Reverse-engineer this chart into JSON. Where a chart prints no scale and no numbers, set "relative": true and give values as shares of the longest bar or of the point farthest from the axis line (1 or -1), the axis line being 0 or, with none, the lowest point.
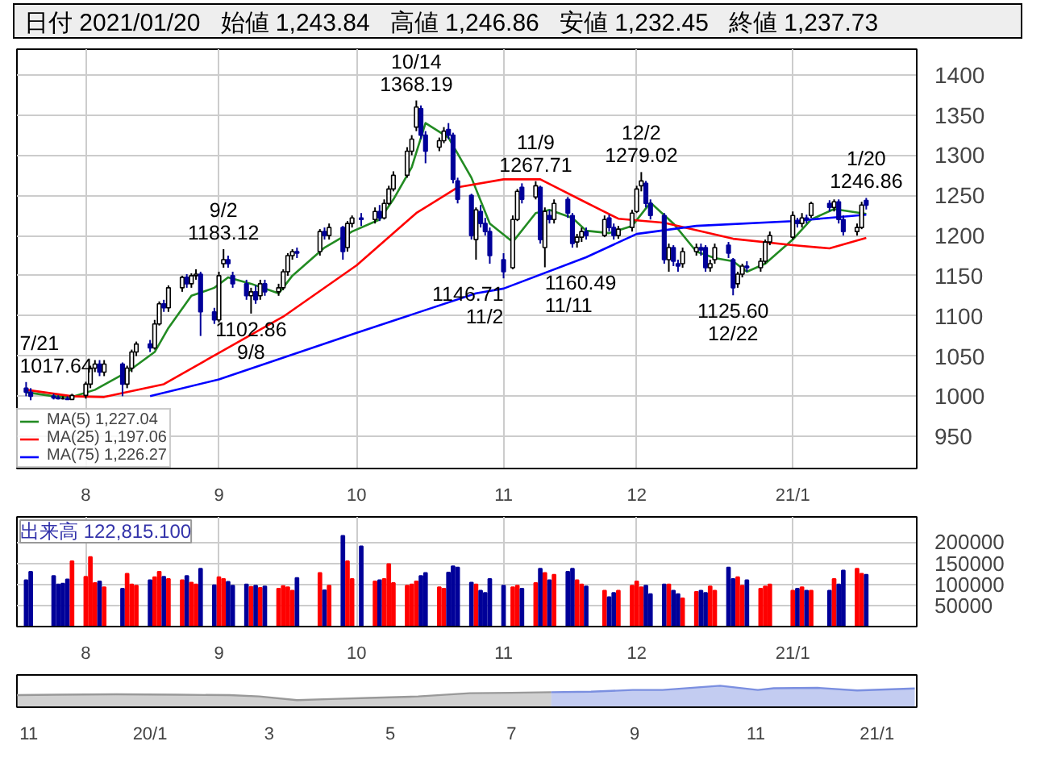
{
  "chart_data": [
    {
      "type": "candlestick",
      "annotations": [
        "日付 2021/01/20",
        "始値 1,243.84",
        "高値 1,246.86",
        "安値 1,232.45",
        "終値 1,237.73",
        {
          "text": "7/21\n1017.64",
          "x": "2020-07-21",
          "y": 1017.64
        },
        {
          "text": "9/2\n1183.12",
          "x": "2020-09-02",
          "y": 1183.12
        },
        {
          "text": "1102.86\n9/8",
          "x": "2020-09-08",
          "y": 1102.86
        },
        {
          "text": "10/14\n1368.19",
          "x": "2020-10-14",
          "y": 1368.19
        },
        {
          "text": "1146.71\n11/2",
          "x": "2020-11-02",
          "y": 1146.71
        },
        {
          "text": "11/9\n1267.71",
          "x": "2020-11-09",
          "y": 1267.71
        },
        {
          "text": "1160.49\n11/11",
          "x": "2020-11-11",
          "y": 1160.49
        },
        {
          "text": "12/2\n1279.02",
          "x": "2020-12-02",
          "y": 1279.02
        },
        {
          "text": "1125.60\n12/22",
          "x": "2020-12-22",
          "y": 1125.6
        },
        {
          "text": "1/20\n1246.86",
          "x": "2021-01-20",
          "y": 1246.86
        }
      ],
      "x": [
        "2020-07-21",
        "2020-07-22",
        "2020-07-27",
        "2020-07-28",
        "2020-07-29",
        "2020-07-30",
        "2020-07-31",
        "2020-08-03",
        "2020-08-04",
        "2020-08-05",
        "2020-08-06",
        "2020-08-07",
        "2020-08-11",
        "2020-08-12",
        "2020-08-13",
        "2020-08-14",
        "2020-08-17",
        "2020-08-18",
        "2020-08-19",
        "2020-08-20",
        "2020-08-21",
        "2020-08-24",
        "2020-08-25",
        "2020-08-26",
        "2020-08-27",
        "2020-08-28",
        "2020-08-31",
        "2020-09-01",
        "2020-09-02",
        "2020-09-03",
        "2020-09-04",
        "2020-09-07",
        "2020-09-08",
        "2020-09-09",
        "2020-09-10",
        "2020-09-11",
        "2020-09-14",
        "2020-09-15",
        "2020-09-16",
        "2020-09-17",
        "2020-09-18",
        "2020-09-23",
        "2020-09-24",
        "2020-09-25",
        "2020-09-28",
        "2020-09-29",
        "2020-09-30",
        "2020-10-02",
        "2020-10-05",
        "2020-10-06",
        "2020-10-07",
        "2020-10-08",
        "2020-10-09",
        "2020-10-12",
        "2020-10-13",
        "2020-10-14",
        "2020-10-15",
        "2020-10-16",
        "2020-10-19",
        "2020-10-20",
        "2020-10-21",
        "2020-10-22",
        "2020-10-23",
        "2020-10-26",
        "2020-10-27",
        "2020-10-28",
        "2020-10-29",
        "2020-10-30",
        "2020-11-02",
        "2020-11-04",
        "2020-11-05",
        "2020-11-06",
        "2020-11-09",
        "2020-11-10",
        "2020-11-11",
        "2020-11-12",
        "2020-11-13",
        "2020-11-16",
        "2020-11-17",
        "2020-11-18",
        "2020-11-19",
        "2020-11-20",
        "2020-11-24",
        "2020-11-25",
        "2020-11-26",
        "2020-11-27",
        "2020-11-30",
        "2020-12-01",
        "2020-12-02",
        "2020-12-03",
        "2020-12-04",
        "2020-12-07",
        "2020-12-08",
        "2020-12-09",
        "2020-12-10",
        "2020-12-11",
        "2020-12-14",
        "2020-12-15",
        "2020-12-16",
        "2020-12-17",
        "2020-12-18",
        "2020-12-21",
        "2020-12-22",
        "2020-12-23",
        "2020-12-24",
        "2020-12-25",
        "2020-12-28",
        "2020-12-29",
        "2020-12-30",
        "2021-01-04",
        "2021-01-05",
        "2021-01-06",
        "2021-01-07",
        "2021-01-08",
        "2021-01-12",
        "2021-01-13",
        "2021-01-14",
        "2021-01-15",
        "2021-01-18",
        "2021-01-19",
        "2021-01-20"
      ],
      "ohlc": [
        [
          1010,
          1017.64,
          1000,
          1005
        ],
        [
          1005,
          1010,
          995,
          1000
        ],
        [
          1000,
          1003,
          996,
          998
        ],
        [
          998,
          1001,
          996,
          997
        ],
        [
          997,
          1000,
          996,
          997
        ],
        [
          997,
          1000,
          996,
          996
        ],
        [
          996,
          1003,
          996,
          1001
        ],
        [
          1001,
          1018,
          997,
          1015
        ],
        [
          1015,
          1038,
          1010,
          1035
        ],
        [
          1035,
          1045,
          1030,
          1040
        ],
        [
          1040,
          1045,
          1025,
          1030
        ],
        [
          1030,
          1045,
          1025,
          1040
        ],
        [
          1040,
          1042,
          1000,
          1015
        ],
        [
          1015,
          1038,
          1010,
          1035
        ],
        [
          1035,
          1058,
          1030,
          1055
        ],
        [
          1055,
          1068,
          1050,
          1065
        ],
        [
          1065,
          1070,
          1055,
          1060
        ],
        [
          1060,
          1095,
          1058,
          1090
        ],
        [
          1090,
          1118,
          1088,
          1115
        ],
        [
          1115,
          1120,
          1105,
          1110
        ],
        [
          1110,
          1138,
          1105,
          1135
        ],
        [
          1135,
          1150,
          1130,
          1148
        ],
        [
          1148,
          1152,
          1135,
          1140
        ],
        [
          1140,
          1153,
          1135,
          1150
        ],
        [
          1150,
          1158,
          1145,
          1152
        ],
        [
          1152,
          1155,
          1075,
          1105
        ],
        [
          1105,
          1110,
          1090,
          1095
        ],
        [
          1095,
          1155,
          1092,
          1150
        ],
        [
          1165,
          1183.12,
          1160,
          1170
        ],
        [
          1170,
          1175,
          1160,
          1165
        ],
        [
          1150,
          1155,
          1135,
          1140
        ],
        [
          1140,
          1145,
          1120,
          1125
        ],
        [
          1125,
          1135,
          1102.86,
          1130
        ],
        [
          1130,
          1138,
          1115,
          1120
        ],
        [
          1125,
          1145,
          1120,
          1140
        ],
        [
          1140,
          1145,
          1125,
          1130
        ],
        [
          1130,
          1140,
          1125,
          1135
        ],
        [
          1135,
          1158,
          1132,
          1155
        ],
        [
          1155,
          1178,
          1150,
          1175
        ],
        [
          1175,
          1183,
          1170,
          1180
        ],
        [
          1180,
          1185,
          1172,
          1178
        ],
        [
          1180,
          1208,
          1175,
          1205
        ],
        [
          1205,
          1210,
          1195,
          1200
        ],
        [
          1200,
          1215,
          1195,
          1210
        ],
        [
          1210,
          1212,
          1170,
          1180
        ],
        [
          1185,
          1218,
          1180,
          1215
        ],
        [
          1215,
          1225,
          1210,
          1222
        ],
        [
          1222,
          1228,
          1212,
          1220
        ],
        [
          1220,
          1235,
          1215,
          1230
        ],
        [
          1230,
          1238,
          1218,
          1222
        ],
        [
          1222,
          1245,
          1220,
          1240
        ],
        [
          1240,
          1262,
          1238,
          1258
        ],
        [
          1258,
          1280,
          1255,
          1275
        ],
        [
          1275,
          1310,
          1272,
          1305
        ],
        [
          1305,
          1325,
          1300,
          1320
        ],
        [
          1335,
          1368.19,
          1330,
          1360
        ],
        [
          1358,
          1362,
          1320,
          1325
        ],
        [
          1325,
          1330,
          1290,
          1305
        ],
        [
          1310,
          1322,
          1305,
          1318
        ],
        [
          1318,
          1335,
          1315,
          1330
        ],
        [
          1332,
          1340,
          1320,
          1325
        ],
        [
          1325,
          1328,
          1265,
          1270
        ],
        [
          1268,
          1272,
          1240,
          1245
        ],
        [
          1250,
          1252,
          1195,
          1200
        ],
        [
          1195,
          1235,
          1170,
          1232
        ],
        [
          1230,
          1238,
          1210,
          1215
        ],
        [
          1215,
          1222,
          1200,
          1205
        ],
        [
          1205,
          1210,
          1165,
          1175
        ],
        [
          1170,
          1178,
          1146.71,
          1155
        ],
        [
          1160,
          1225,
          1158,
          1220
        ],
        [
          1220,
          1258,
          1218,
          1255
        ],
        [
          1260,
          1265,
          1240,
          1245
        ],
        [
          1248,
          1267.71,
          1245,
          1262
        ],
        [
          1260,
          1262,
          1190,
          1195
        ],
        [
          1185,
          1235,
          1160.49,
          1230
        ],
        [
          1225,
          1232,
          1215,
          1220
        ],
        [
          1220,
          1245,
          1215,
          1240
        ],
        [
          1245,
          1248,
          1222,
          1228
        ],
        [
          1225,
          1228,
          1185,
          1190
        ],
        [
          1192,
          1202,
          1185,
          1198
        ],
        [
          1198,
          1210,
          1192,
          1205
        ],
        [
          1205,
          1210,
          1195,
          1200
        ],
        [
          1200,
          1225,
          1198,
          1220
        ],
        [
          1222,
          1226,
          1205,
          1210
        ],
        [
          1210,
          1215,
          1195,
          1200
        ],
        [
          1200,
          1212,
          1196,
          1208
        ],
        [
          1210,
          1232,
          1205,
          1228
        ],
        [
          1230,
          1262,
          1228,
          1258
        ],
        [
          1262,
          1279.02,
          1255,
          1268
        ],
        [
          1265,
          1268,
          1235,
          1240
        ],
        [
          1240,
          1245,
          1220,
          1225
        ],
        [
          1225,
          1228,
          1165,
          1170
        ],
        [
          1170,
          1190,
          1155,
          1185
        ],
        [
          1185,
          1188,
          1162,
          1168
        ],
        [
          1165,
          1170,
          1155,
          1162
        ],
        [
          1165,
          1185,
          1160,
          1180
        ],
        [
          1180,
          1190,
          1175,
          1185
        ],
        [
          1185,
          1190,
          1175,
          1182
        ],
        [
          1185,
          1188,
          1155,
          1160
        ],
        [
          1160,
          1170,
          1155,
          1165
        ],
        [
          1170,
          1190,
          1165,
          1185
        ],
        [
          1188,
          1192,
          1172,
          1178
        ],
        [
          1170,
          1172,
          1125.6,
          1135
        ],
        [
          1140,
          1155,
          1135,
          1152
        ],
        [
          1152,
          1165,
          1148,
          1162
        ],
        [
          1162,
          1168,
          1155,
          1160
        ],
        [
          1160,
          1172,
          1155,
          1168
        ],
        [
          1168,
          1195,
          1165,
          1192
        ],
        [
          1192,
          1205,
          1188,
          1200
        ],
        [
          1198,
          1230,
          1195,
          1225
        ],
        [
          1218,
          1222,
          1210,
          1215
        ],
        [
          1215,
          1228,
          1210,
          1222
        ],
        [
          1222,
          1226,
          1215,
          1220
        ],
        [
          1225,
          1242,
          1222,
          1240
        ],
        [
          1240,
          1244,
          1230,
          1235
        ],
        [
          1235,
          1245,
          1230,
          1242
        ],
        [
          1242,
          1245,
          1215,
          1220
        ],
        [
          1220,
          1225,
          1200,
          1205
        ],
        [
          1205,
          1215,
          1200,
          1210
        ],
        [
          1210,
          1242,
          1208,
          1238
        ],
        [
          1243.84,
          1246.86,
          1232.45,
          1237.73
        ]
      ],
      "series": [
        {
          "name": "MA(5) 1,227.04",
          "type": "line",
          "color": "#228b22",
          "x": [
            "2020-07-21",
            "2020-07-27",
            "2020-07-31",
            "2020-08-05",
            "2020-08-12",
            "2020-08-18",
            "2020-08-21",
            "2020-08-26",
            "2020-08-31",
            "2020-09-03",
            "2020-09-08",
            "2020-09-14",
            "2020-09-17",
            "2020-09-24",
            "2020-09-30",
            "2020-10-06",
            "2020-10-09",
            "2020-10-13",
            "2020-10-16",
            "2020-10-21",
            "2020-10-26",
            "2020-10-30",
            "2020-11-04",
            "2020-11-09",
            "2020-11-12",
            "2020-11-17",
            "2020-11-20",
            "2020-11-25",
            "2020-11-30",
            "2020-12-04",
            "2020-12-09",
            "2020-12-14",
            "2020-12-18",
            "2020-12-22",
            "2020-12-25",
            "2020-12-29",
            "2021-01-04",
            "2021-01-08",
            "2021-01-13",
            "2021-01-20"
          ],
          "values": [
            1005,
            1000,
            999,
            1008,
            1030,
            1055,
            1085,
            1125,
            1135,
            1148,
            1140,
            1128,
            1150,
            1185,
            1205,
            1220,
            1245,
            1285,
            1340,
            1322,
            1272,
            1215,
            1192,
            1228,
            1232,
            1222,
            1206,
            1203,
            1212,
            1241,
            1215,
            1180,
            1172,
            1168,
            1155,
            1165,
            1195,
            1220,
            1233,
            1227
          ]
        },
        {
          "name": "MA(25) 1,197.06",
          "type": "line",
          "color": "#ff0000",
          "x": [
            "2020-07-21",
            "2020-07-31",
            "2020-08-07",
            "2020-08-20",
            "2020-09-01",
            "2020-09-15",
            "2020-10-01",
            "2020-10-14",
            "2020-10-23",
            "2020-11-02",
            "2020-11-10",
            "2020-11-20",
            "2020-11-27",
            "2020-12-07",
            "2020-12-22",
            "2021-01-04",
            "2021-01-12",
            "2021-01-20"
          ],
          "values": [
            1008,
            1000,
            999,
            1015,
            1054,
            1099,
            1163,
            1228,
            1260,
            1270,
            1270,
            1241,
            1221,
            1216,
            1196,
            1188,
            1184,
            1197
          ]
        },
        {
          "name": "MA(75) 1,226.27",
          "type": "line",
          "color": "#0000ff",
          "x": [
            "2020-08-17",
            "2020-09-01",
            "2020-10-01",
            "2020-10-27",
            "2020-11-02",
            "2020-11-20",
            "2020-12-01",
            "2020-12-14",
            "2021-01-04",
            "2021-01-20"
          ],
          "values": [
            1000,
            1021,
            1079,
            1128,
            1134,
            1173,
            1202,
            1212,
            1218,
            1226
          ]
        }
      ],
      "xlim": [
        "2020-07-19",
        "2021-01-31"
      ],
      "ylim": [
        910,
        1432
      ],
      "xticks": [
        {
          "value": "2020-08-03",
          "label": "8"
        },
        {
          "value": "2020-09-01",
          "label": "9"
        },
        {
          "value": "2020-10-01",
          "label": "10"
        },
        {
          "value": "2020-11-02",
          "label": "11"
        },
        {
          "value": "2020-12-01",
          "label": "12"
        },
        {
          "value": "2021-01-04",
          "label": "21/1"
        }
      ],
      "yticks": [
        950,
        1000,
        1050,
        1100,
        1150,
        1200,
        1250,
        1300,
        1350,
        1400
      ],
      "grid": true,
      "legend": "bottom left",
      "marker": "none",
      "line_style": "solid"
    },
    {
      "type": "bar",
      "title": "出来高 122,815.100",
      "x": [
        "2020-07-21",
        "2020-07-22",
        "2020-07-27",
        "2020-07-28",
        "2020-07-29",
        "2020-07-30",
        "2020-07-31",
        "2020-08-03",
        "2020-08-04",
        "2020-08-05",
        "2020-08-06",
        "2020-08-07",
        "2020-08-11",
        "2020-08-12",
        "2020-08-13",
        "2020-08-14",
        "2020-08-17",
        "2020-08-18",
        "2020-08-19",
        "2020-08-20",
        "2020-08-21",
        "2020-08-24",
        "2020-08-25",
        "2020-08-26",
        "2020-08-27",
        "2020-08-28",
        "2020-08-31",
        "2020-09-01",
        "2020-09-02",
        "2020-09-03",
        "2020-09-04",
        "2020-09-07",
        "2020-09-08",
        "2020-09-09",
        "2020-09-10",
        "2020-09-11",
        "2020-09-14",
        "2020-09-15",
        "2020-09-16",
        "2020-09-17",
        "2020-09-18",
        "2020-09-23",
        "2020-09-24",
        "2020-09-25",
        "2020-09-28",
        "2020-09-29",
        "2020-09-30",
        "2020-10-02",
        "2020-10-05",
        "2020-10-06",
        "2020-10-07",
        "2020-10-08",
        "2020-10-09",
        "2020-10-12",
        "2020-10-13",
        "2020-10-14",
        "2020-10-15",
        "2020-10-16",
        "2020-10-19",
        "2020-10-20",
        "2020-10-21",
        "2020-10-22",
        "2020-10-23",
        "2020-10-26",
        "2020-10-27",
        "2020-10-28",
        "2020-10-29",
        "2020-10-30",
        "2020-11-02",
        "2020-11-04",
        "2020-11-05",
        "2020-11-06",
        "2020-11-09",
        "2020-11-10",
        "2020-11-11",
        "2020-11-12",
        "2020-11-13",
        "2020-11-16",
        "2020-11-17",
        "2020-11-18",
        "2020-11-19",
        "2020-11-20",
        "2020-11-24",
        "2020-11-25",
        "2020-11-26",
        "2020-11-27",
        "2020-11-30",
        "2020-12-01",
        "2020-12-02",
        "2020-12-03",
        "2020-12-04",
        "2020-12-07",
        "2020-12-08",
        "2020-12-09",
        "2020-12-10",
        "2020-12-11",
        "2020-12-14",
        "2020-12-15",
        "2020-12-16",
        "2020-12-17",
        "2020-12-18",
        "2020-12-21",
        "2020-12-22",
        "2020-12-23",
        "2020-12-24",
        "2020-12-25",
        "2020-12-28",
        "2020-12-29",
        "2020-12-30",
        "2021-01-04",
        "2021-01-05",
        "2021-01-06",
        "2021-01-07",
        "2021-01-08",
        "2021-01-12",
        "2021-01-13",
        "2021-01-14",
        "2021-01-15",
        "2021-01-18",
        "2021-01-19",
        "2021-01-20"
      ],
      "values": [
        110000,
        130000,
        120000,
        100000,
        102000,
        112000,
        155000,
        118000,
        165000,
        103000,
        107000,
        93000,
        90000,
        125000,
        100000,
        97000,
        110000,
        117000,
        130000,
        118000,
        113000,
        110000,
        120000,
        104000,
        100000,
        137000,
        98000,
        117000,
        113000,
        106000,
        97000,
        100000,
        94000,
        97000,
        92000,
        95000,
        90000,
        96000,
        93000,
        85000,
        115000,
        127000,
        86000,
        97000,
        215000,
        155000,
        113000,
        190000,
        107000,
        110000,
        113000,
        148000,
        103000,
        97000,
        100000,
        107000,
        120000,
        127000,
        93000,
        90000,
        128000,
        143000,
        140000,
        104000,
        100000,
        85000,
        80000,
        113000,
        97000,
        93000,
        97000,
        90000,
        103000,
        137000,
        127000,
        110000,
        123000,
        130000,
        137000,
        110000,
        100000,
        95000,
        85000,
        70000,
        80000,
        85000,
        97000,
        107000,
        93000,
        97000,
        77000,
        100000,
        100000,
        85000,
        77000,
        67000,
        82000,
        85000,
        80000,
        95000,
        85000,
        140000,
        113000,
        117000,
        97000,
        110000,
        90000,
        95000,
        100000,
        85000,
        90000,
        93000,
        85000,
        85000,
        85000,
        113000,
        100000,
        133000,
        137000,
        125000,
        123000
      ],
      "colors": [
        "#000099",
        "#000099",
        "#000099",
        "#000099",
        "#000099",
        "#000099",
        "#ff0000",
        "#ff0000",
        "#ff0000",
        "#ff0000",
        "#000099",
        "#ff0000",
        "#000099",
        "#ff0000",
        "#ff0000",
        "#ff0000",
        "#000099",
        "#ff0000",
        "#ff0000",
        "#000099",
        "#ff0000",
        "#ff0000",
        "#000099",
        "#ff0000",
        "#ff0000",
        "#000099",
        "#000099",
        "#ff0000",
        "#ff0000",
        "#000099",
        "#000099",
        "#000099",
        "#ff0000",
        "#000099",
        "#ff0000",
        "#000099",
        "#ff0000",
        "#ff0000",
        "#ff0000",
        "#ff0000",
        "#000099",
        "#ff0000",
        "#000099",
        "#ff0000",
        "#000099",
        "#ff0000",
        "#ff0000",
        "#000099",
        "#ff0000",
        "#000099",
        "#ff0000",
        "#ff0000",
        "#ff0000",
        "#ff0000",
        "#ff0000",
        "#ff0000",
        "#000099",
        "#000099",
        "#ff0000",
        "#ff0000",
        "#000099",
        "#000099",
        "#000099",
        "#000099",
        "#ff0000",
        "#000099",
        "#000099",
        "#000099",
        "#000099",
        "#ff0000",
        "#ff0000",
        "#000099",
        "#ff0000",
        "#000099",
        "#ff0000",
        "#000099",
        "#ff0000",
        "#000099",
        "#000099",
        "#ff0000",
        "#ff0000",
        "#000099",
        "#ff0000",
        "#000099",
        "#000099",
        "#ff0000",
        "#ff0000",
        "#ff0000",
        "#ff0000",
        "#000099",
        "#000099",
        "#000099",
        "#ff0000",
        "#000099",
        "#000099",
        "#ff0000",
        "#ff0000",
        "#000099",
        "#000099",
        "#ff0000",
        "#ff0000",
        "#000099",
        "#000099",
        "#ff0000",
        "#ff0000",
        "#000099",
        "#ff0000",
        "#ff0000",
        "#ff0000",
        "#ff0000",
        "#000099",
        "#ff0000",
        "#000099",
        "#ff0000",
        "#000099",
        "#ff0000",
        "#000099",
        "#000099",
        "#ff0000",
        "#ff0000",
        "#000099"
      ],
      "xlim": [
        "2020-07-19",
        "2021-01-31"
      ],
      "ylim": [
        0,
        260000
      ],
      "xticks": [
        {
          "value": "2020-08-03",
          "label": "8"
        },
        {
          "value": "2020-09-01",
          "label": "9"
        },
        {
          "value": "2020-10-01",
          "label": "10"
        },
        {
          "value": "2020-11-02",
          "label": "11"
        },
        {
          "value": "2020-12-01",
          "label": "12"
        },
        {
          "value": "2021-01-04",
          "label": "21/1"
        }
      ],
      "yticks": [
        50000,
        100000,
        150000,
        200000
      ],
      "grid": true
    },
    {
      "type": "area",
      "relative": true,
      "tick_labels": "x",
      "series": [
        {
          "color": "#999999",
          "x": [
            "2019-10-26",
            "2019-11-15",
            "2019-12-15",
            "2020-01-15",
            "2020-02-10",
            "2020-02-25",
            "2020-03-15",
            "2020-04-01",
            "2020-04-20",
            "2020-05-15",
            "2020-06-10",
            "2020-07-01",
            "2020-07-21"
          ],
          "values": [
            0.56,
            0.58,
            0.6,
            0.58,
            0.56,
            0.5,
            0.33,
            0.38,
            0.43,
            0.5,
            0.65,
            0.67,
            0.7
          ]
        },
        {
          "color": "#7b8fe0",
          "x": [
            "2020-07-21",
            "2020-08-10",
            "2020-08-31",
            "2020-09-15",
            "2020-10-14",
            "2020-11-02",
            "2020-11-10",
            "2020-12-02",
            "2020-12-22",
            "2021-01-20"
          ],
          "values": [
            0.7,
            0.72,
            0.8,
            0.8,
            1.0,
            0.8,
            0.88,
            0.9,
            0.78,
            0.87
          ]
        }
      ],
      "xlim": [
        "2019-10-26",
        "2021-01-21"
      ],
      "xticks": [
        {
          "value": "2019-11-01",
          "label": "11"
        },
        {
          "value": "2020-01-01",
          "label": "20/1"
        },
        {
          "value": "2020-03-01",
          "label": "3"
        },
        {
          "value": "2020-05-01",
          "label": "5"
        },
        {
          "value": "2020-07-01",
          "label": "7"
        },
        {
          "value": "2020-09-01",
          "label": "9"
        },
        {
          "value": "2020-11-01",
          "label": "11"
        },
        {
          "value": "2021-01-01",
          "label": "21/1"
        }
      ]
    }
  ]
}
